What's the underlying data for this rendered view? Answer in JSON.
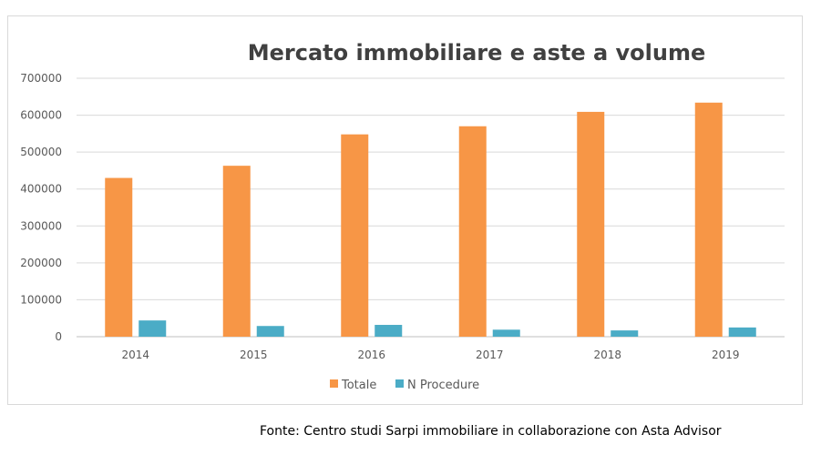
{
  "chart_data": {
    "type": "bar",
    "title": "Mercato immobiliare e aste a volume",
    "categories": [
      "2014",
      "2015",
      "2016",
      "2017",
      "2018",
      "2019"
    ],
    "series": [
      {
        "name": "Totale",
        "color": "#f79646",
        "values": [
          430000,
          463000,
          548000,
          570000,
          609000,
          634000
        ]
      },
      {
        "name": "N Procedure",
        "color": "#4bacc6",
        "values": [
          44000,
          29000,
          32000,
          19000,
          17000,
          25000
        ]
      }
    ],
    "ylim": [
      0,
      700000
    ],
    "yticks": [
      "700000",
      "600000",
      "500000",
      "400000",
      "300000",
      "200000",
      "100000",
      "0"
    ],
    "grid": true,
    "legend": "bottom"
  },
  "source_note": "Fonte: Centro studi Sarpi immobiliare in collaborazione con Asta Advisor"
}
